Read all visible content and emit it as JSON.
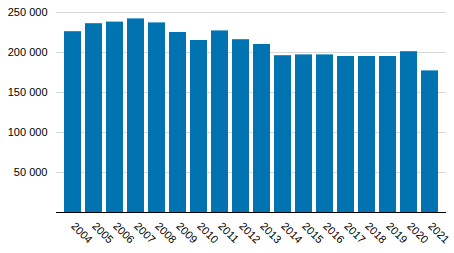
{
  "chart_data": {
    "type": "bar",
    "categories": [
      "2004",
      "2005",
      "2006",
      "2007",
      "2008",
      "2009",
      "2010",
      "2011",
      "2012",
      "2013",
      "2014",
      "2015",
      "2016",
      "2017",
      "2018",
      "2019",
      "2020",
      "2021"
    ],
    "values": [
      226000,
      236000,
      238000,
      242000,
      237000,
      225000,
      215000,
      227000,
      216000,
      210000,
      196000,
      197000,
      197000,
      195000,
      195000,
      195000,
      201000,
      177000
    ],
    "color": "#0073b0",
    "ylim": [
      0,
      250000
    ],
    "yticks": [
      {
        "value": 50000,
        "label": "50 000"
      },
      {
        "value": 100000,
        "label": "100 000"
      },
      {
        "value": 150000,
        "label": "150 000"
      },
      {
        "value": 200000,
        "label": "200 000"
      },
      {
        "value": 250000,
        "label": "250 000"
      }
    ],
    "grid": true
  }
}
